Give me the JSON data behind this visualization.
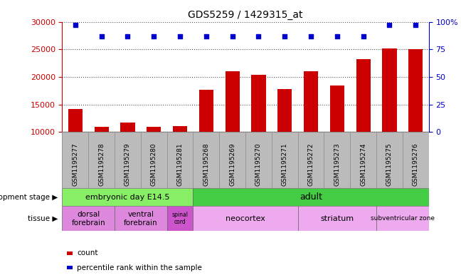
{
  "title": "GDS5259 / 1429315_at",
  "samples": [
    "GSM1195277",
    "GSM1195278",
    "GSM1195279",
    "GSM1195280",
    "GSM1195281",
    "GSM1195268",
    "GSM1195269",
    "GSM1195270",
    "GSM1195271",
    "GSM1195272",
    "GSM1195273",
    "GSM1195274",
    "GSM1195275",
    "GSM1195276"
  ],
  "counts": [
    14200,
    11000,
    11700,
    11000,
    11100,
    17700,
    21000,
    20400,
    17800,
    21000,
    18400,
    23300,
    25200,
    25000
  ],
  "percentiles": [
    97,
    87,
    87,
    87,
    87,
    87,
    87,
    87,
    87,
    87,
    87,
    87,
    97,
    97
  ],
  "ylim_left": [
    10000,
    30000
  ],
  "yticks_left": [
    10000,
    15000,
    20000,
    25000,
    30000
  ],
  "ylim_right": [
    0,
    100
  ],
  "yticks_right": [
    0,
    25,
    50,
    75,
    100
  ],
  "bar_color": "#cc0000",
  "dot_color": "#0000cc",
  "bar_width": 0.55,
  "dot_size": 15,
  "left_label_color": "#cc0000",
  "right_label_color": "#0000cc",
  "background_color": "#ffffff",
  "grid_color": "#555555",
  "sample_bg_color": "#bbbbbb",
  "dev_embryonic_color": "#88ee66",
  "dev_adult_color": "#44cc44",
  "tissue_pink_color": "#dd88dd",
  "tissue_light_pink_color": "#eeaaee",
  "tissue_dark_pink_color": "#cc55cc",
  "legend_count_color": "#cc0000",
  "legend_dot_color": "#0000cc"
}
